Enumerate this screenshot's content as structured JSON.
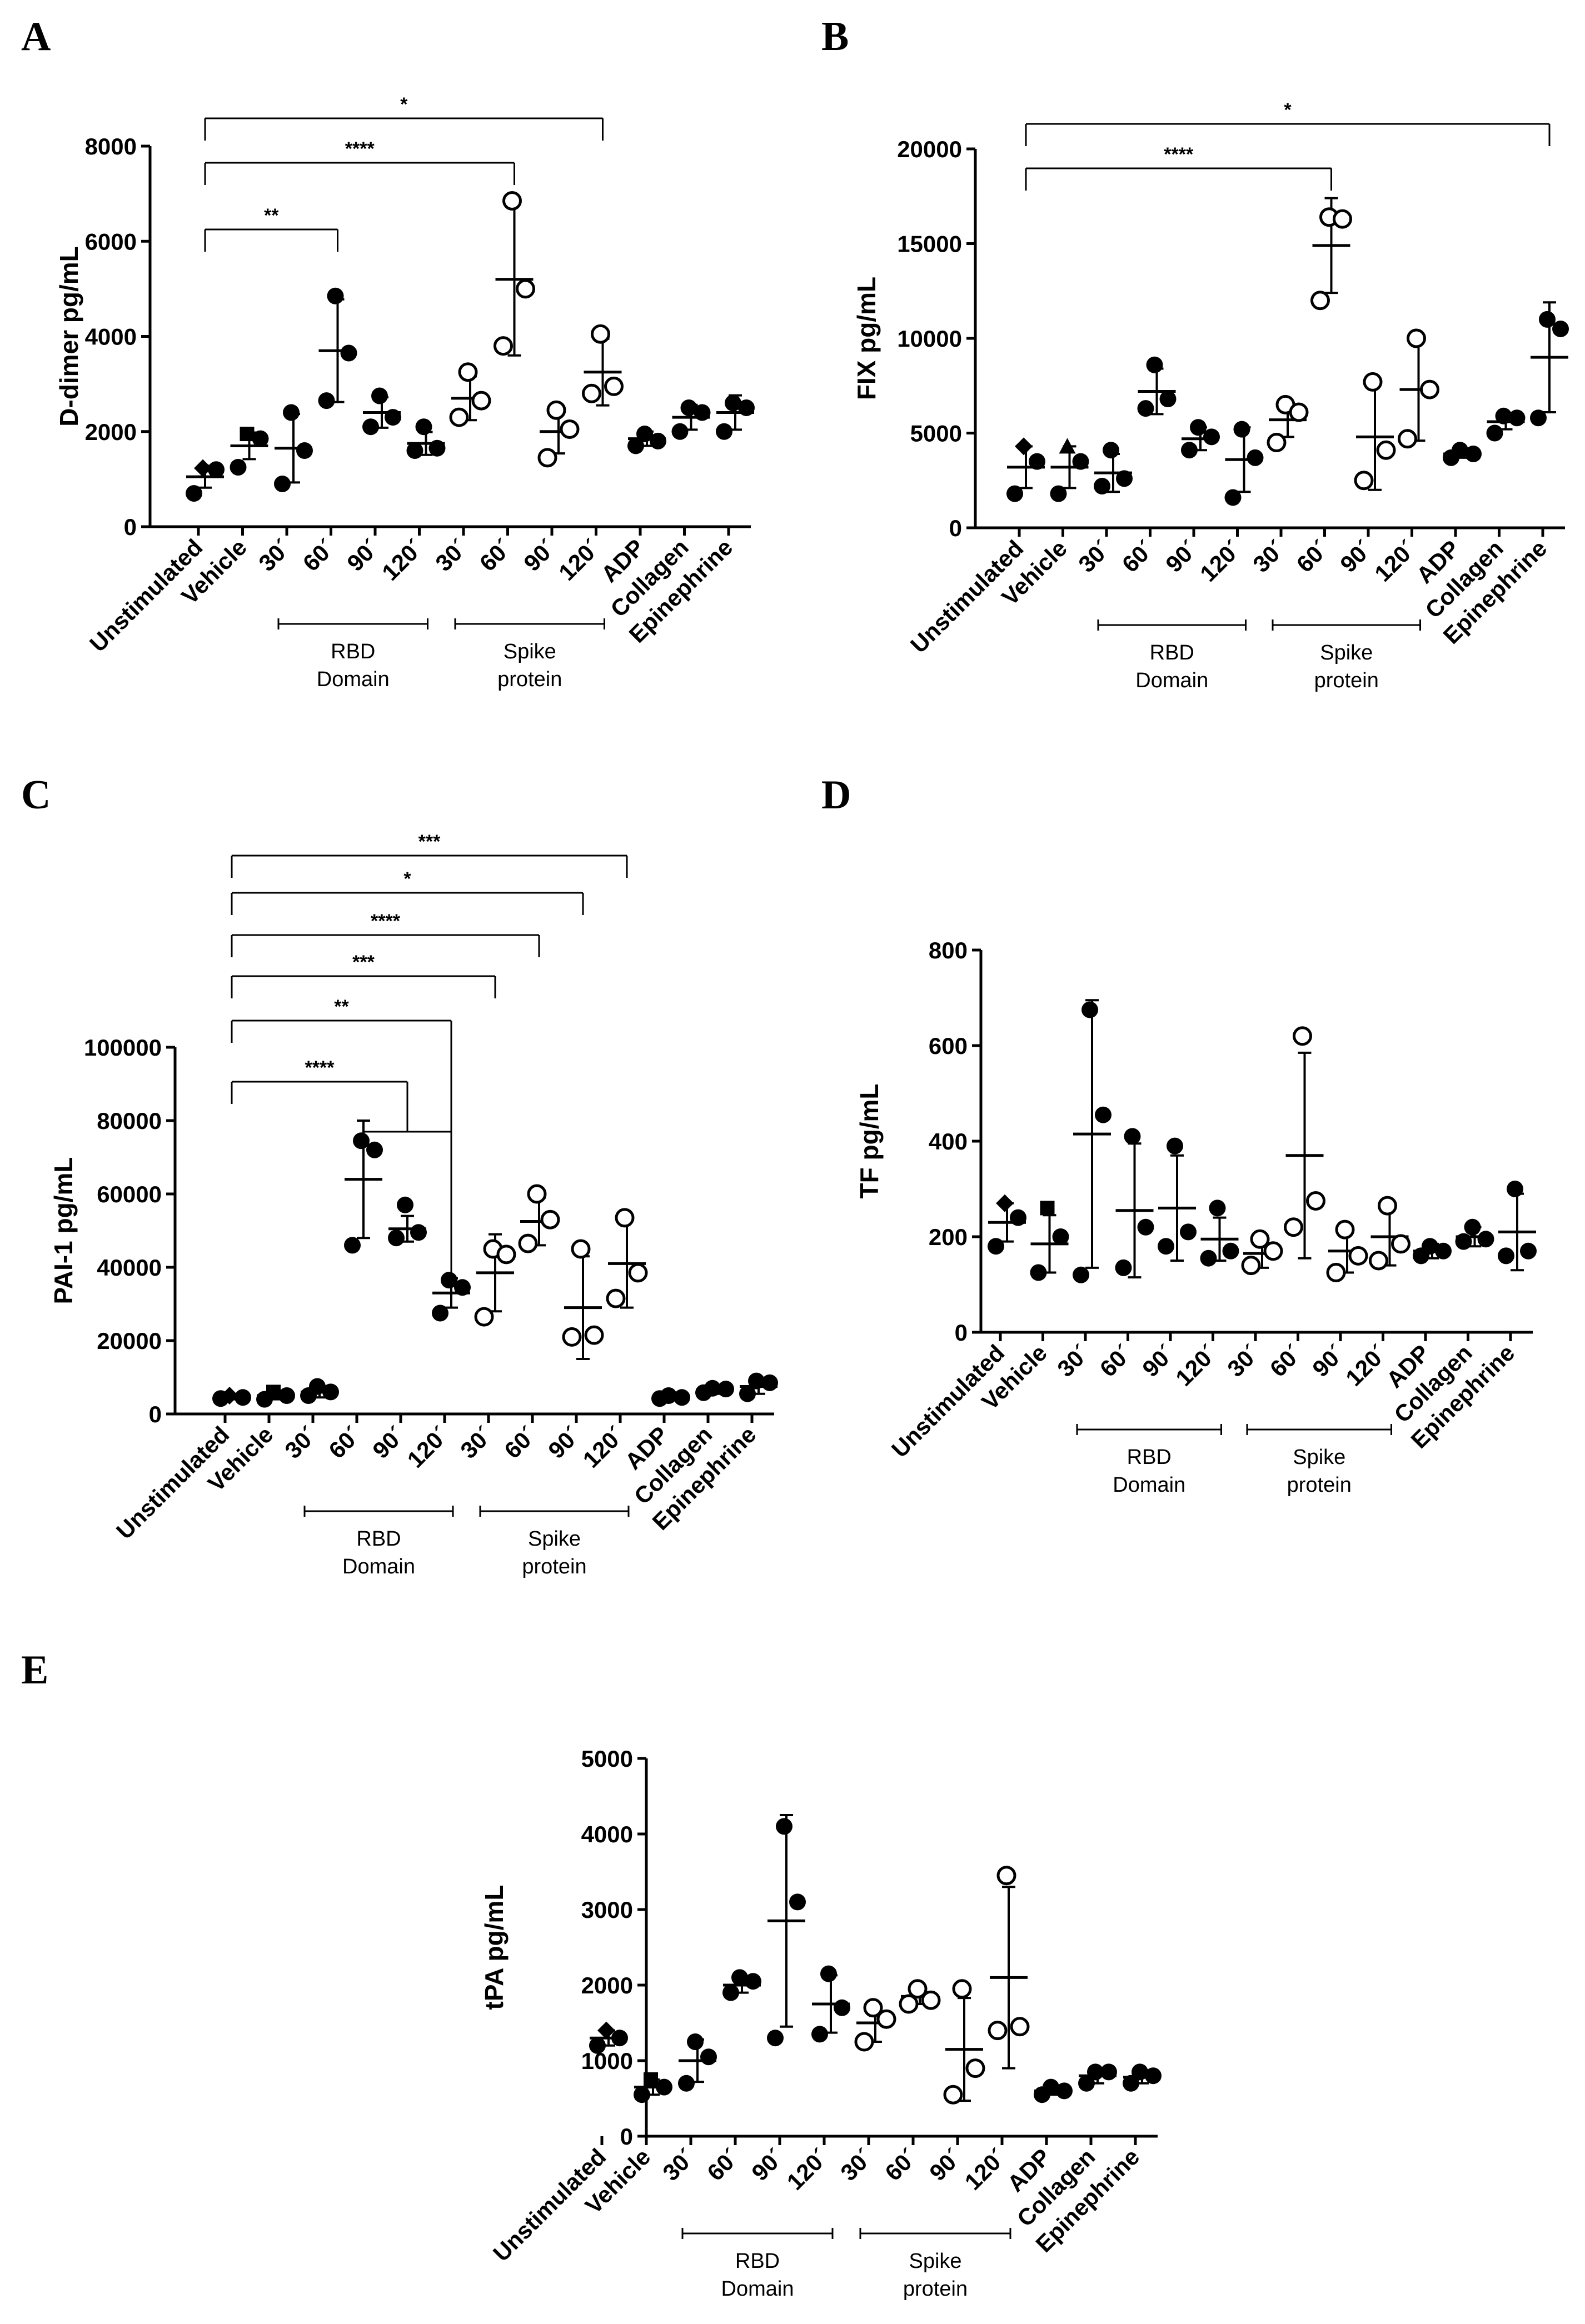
{
  "figure": {
    "categories": [
      "Unstimulated",
      "Vehicle",
      "30´",
      "60´",
      "90´",
      "120´",
      "30´",
      "60´",
      "90´",
      "120´",
      "ADP",
      "Collagen",
      "Epinephrine"
    ],
    "groups": [
      {
        "label_line1": "RBD",
        "label_line2": "Domain"
      },
      {
        "label_line1": "Spike",
        "label_line2": "protein"
      }
    ]
  },
  "chart_data": [
    {
      "panel": "A",
      "type": "scatter",
      "ylabel": "D-dimer pg/mL",
      "ylim": [
        0,
        8000
      ],
      "yticks": [
        0,
        2000,
        4000,
        6000,
        8000
      ],
      "series": [
        {
          "mean": 1050,
          "sd": 230,
          "points": [
            1230,
            700,
            1200
          ],
          "marker": "diamond"
        },
        {
          "mean": 1700,
          "sd": 280,
          "points": [
            1950,
            1250,
            1850
          ],
          "marker": "square"
        },
        {
          "mean": 1650,
          "sd": 720,
          "points": [
            2400,
            900,
            1600
          ],
          "marker": "filled"
        },
        {
          "mean": 3700,
          "sd": 1080,
          "points": [
            4850,
            2650,
            3650
          ],
          "marker": "filled"
        },
        {
          "mean": 2400,
          "sd": 320,
          "points": [
            2750,
            2100,
            2300
          ],
          "marker": "filled"
        },
        {
          "mean": 1750,
          "sd": 240,
          "points": [
            2100,
            1600,
            1650
          ],
          "marker": "filled"
        },
        {
          "mean": 2700,
          "sd": 460,
          "points": [
            3250,
            2300,
            2650
          ],
          "marker": "open"
        },
        {
          "mean": 5200,
          "sd": 1600,
          "points": [
            6850,
            3800,
            5000
          ],
          "marker": "open"
        },
        {
          "mean": 2000,
          "sd": 460,
          "points": [
            2450,
            1450,
            2050
          ],
          "marker": "open"
        },
        {
          "mean": 3250,
          "sd": 700,
          "points": [
            4050,
            2800,
            2950
          ],
          "marker": "open"
        },
        {
          "mean": 1850,
          "sd": 150,
          "points": [
            1950,
            1700,
            1800
          ],
          "marker": "filled"
        },
        {
          "mean": 2300,
          "sd": 260,
          "points": [
            2500,
            2000,
            2400
          ],
          "marker": "filled"
        },
        {
          "mean": 2400,
          "sd": 360,
          "points": [
            2600,
            2000,
            2500
          ],
          "marker": "filled"
        }
      ],
      "significance": [
        {
          "from": 0,
          "to": 3,
          "label": "**"
        },
        {
          "from": 0,
          "to": 7,
          "label": "****"
        },
        {
          "from": 0,
          "to": 9,
          "label": "*"
        }
      ]
    },
    {
      "panel": "B",
      "type": "scatter",
      "ylabel": "FIX pg/mL",
      "ylim": [
        0,
        20000
      ],
      "yticks": [
        0,
        5000,
        10000,
        15000,
        20000
      ],
      "series": [
        {
          "mean": 3200,
          "sd": 1100,
          "points": [
            4300,
            1800,
            3500
          ],
          "marker": "diamond"
        },
        {
          "mean": 3200,
          "sd": 1100,
          "points": [
            4300,
            1800,
            3500
          ],
          "marker": "triangle"
        },
        {
          "mean": 2900,
          "sd": 1000,
          "points": [
            4100,
            2200,
            2600
          ],
          "marker": "filled"
        },
        {
          "mean": 7200,
          "sd": 1200,
          "points": [
            8600,
            6300,
            6800
          ],
          "marker": "filled"
        },
        {
          "mean": 4700,
          "sd": 600,
          "points": [
            5300,
            4100,
            4800
          ],
          "marker": "filled"
        },
        {
          "mean": 3600,
          "sd": 1700,
          "points": [
            5200,
            1600,
            3700
          ],
          "marker": "filled"
        },
        {
          "mean": 5700,
          "sd": 900,
          "points": [
            6500,
            4500,
            6100
          ],
          "marker": "open"
        },
        {
          "mean": 14900,
          "sd": 2500,
          "points": [
            16400,
            12000,
            16300
          ],
          "marker": "open"
        },
        {
          "mean": 4800,
          "sd": 2800,
          "points": [
            7700,
            2500,
            4100
          ],
          "marker": "open"
        },
        {
          "mean": 7300,
          "sd": 2700,
          "points": [
            10000,
            4700,
            7300
          ],
          "marker": "open"
        },
        {
          "mean": 3900,
          "sd": 200,
          "points": [
            4100,
            3700,
            3900
          ],
          "marker": "filled"
        },
        {
          "mean": 5600,
          "sd": 400,
          "points": [
            5900,
            5000,
            5800
          ],
          "marker": "filled"
        },
        {
          "mean": 9000,
          "sd": 2900,
          "points": [
            11000,
            5800,
            10500
          ],
          "marker": "filled"
        }
      ],
      "significance": [
        {
          "from": 0,
          "to": 7,
          "label": "****"
        },
        {
          "from": 0,
          "to": 12,
          "label": "*"
        }
      ]
    },
    {
      "panel": "C",
      "type": "scatter",
      "ylabel": "PAI-1 pg/mL",
      "ylim": [
        0,
        100000
      ],
      "yticks": [
        0,
        20000,
        40000,
        60000,
        80000,
        100000
      ],
      "series": [
        {
          "mean": 4500,
          "sd": 500,
          "points": [
            5000,
            4200,
            4500
          ],
          "marker": "diamond"
        },
        {
          "mean": 5000,
          "sd": 1000,
          "points": [
            6000,
            4000,
            5000
          ],
          "marker": "square"
        },
        {
          "mean": 6000,
          "sd": 1500,
          "points": [
            7500,
            5000,
            6000
          ],
          "marker": "filled"
        },
        {
          "mean": 64000,
          "sd": 16000,
          "points": [
            74500,
            46000,
            72000
          ],
          "marker": "filled"
        },
        {
          "mean": 50500,
          "sd": 3500,
          "points": [
            57000,
            48000,
            49500
          ],
          "marker": "filled"
        },
        {
          "mean": 33000,
          "sd": 4000,
          "points": [
            36500,
            27500,
            34500
          ],
          "marker": "filled"
        },
        {
          "mean": 38500,
          "sd": 10500,
          "points": [
            45000,
            26500,
            43500
          ],
          "marker": "open"
        },
        {
          "mean": 52500,
          "sd": 6500,
          "points": [
            60000,
            46500,
            53000
          ],
          "marker": "open"
        },
        {
          "mean": 29000,
          "sd": 14000,
          "points": [
            45000,
            21000,
            21500
          ],
          "marker": "open"
        },
        {
          "mean": 41000,
          "sd": 12000,
          "points": [
            53500,
            31500,
            38500
          ],
          "marker": "open"
        },
        {
          "mean": 4500,
          "sd": 500,
          "points": [
            5000,
            4200,
            4500
          ],
          "marker": "filled"
        },
        {
          "mean": 6500,
          "sd": 1000,
          "points": [
            7000,
            5800,
            6800
          ],
          "marker": "filled"
        },
        {
          "mean": 7500,
          "sd": 2000,
          "points": [
            9000,
            5500,
            8500
          ],
          "marker": "filled"
        }
      ],
      "significance": [
        {
          "from": 0,
          "to": 4,
          "label": "****",
          "bracket_from": 3,
          "bracket_to": 5
        },
        {
          "from": 0,
          "to": 5,
          "label": "**"
        },
        {
          "from": 0,
          "to": 6,
          "label": "***"
        },
        {
          "from": 0,
          "to": 7,
          "label": "****"
        },
        {
          "from": 0,
          "to": 8,
          "label": "*"
        },
        {
          "from": 0,
          "to": 9,
          "label": "***"
        }
      ]
    },
    {
      "panel": "D",
      "type": "scatter",
      "ylabel": "TF pg/mL",
      "ylim": [
        0,
        800
      ],
      "yticks": [
        0,
        200,
        400,
        600,
        800
      ],
      "series": [
        {
          "mean": 230,
          "sd": 40,
          "points": [
            270,
            180,
            240
          ],
          "marker": "diamond"
        },
        {
          "mean": 185,
          "sd": 60,
          "points": [
            260,
            125,
            200
          ],
          "marker": "square"
        },
        {
          "mean": 415,
          "sd": 280,
          "points": [
            675,
            120,
            455
          ],
          "marker": "filled"
        },
        {
          "mean": 255,
          "sd": 140,
          "points": [
            410,
            135,
            220
          ],
          "marker": "filled"
        },
        {
          "mean": 260,
          "sd": 110,
          "points": [
            390,
            180,
            210
          ],
          "marker": "filled"
        },
        {
          "mean": 195,
          "sd": 45,
          "points": [
            260,
            155,
            170
          ],
          "marker": "filled"
        },
        {
          "mean": 165,
          "sd": 30,
          "points": [
            195,
            140,
            170
          ],
          "marker": "open"
        },
        {
          "mean": 370,
          "sd": 215,
          "points": [
            620,
            220,
            275
          ],
          "marker": "open"
        },
        {
          "mean": 170,
          "sd": 45,
          "points": [
            215,
            125,
            160
          ],
          "marker": "open"
        },
        {
          "mean": 200,
          "sd": 60,
          "points": [
            265,
            150,
            185
          ],
          "marker": "open"
        },
        {
          "mean": 170,
          "sd": 15,
          "points": [
            180,
            160,
            170
          ],
          "marker": "filled"
        },
        {
          "mean": 200,
          "sd": 20,
          "points": [
            220,
            190,
            195
          ],
          "marker": "filled"
        },
        {
          "mean": 210,
          "sd": 80,
          "points": [
            300,
            160,
            170
          ],
          "marker": "filled"
        }
      ],
      "significance": []
    },
    {
      "panel": "E",
      "type": "scatter",
      "ylabel": "tPA pg/mL",
      "ylim": [
        0,
        5000
      ],
      "yticks": [
        0,
        1000,
        2000,
        3000,
        4000,
        5000
      ],
      "series": [
        {
          "mean": 1300,
          "sd": 100,
          "points": [
            1400,
            1200,
            1300
          ],
          "marker": "diamond"
        },
        {
          "mean": 650,
          "sd": 100,
          "points": [
            750,
            550,
            650
          ],
          "marker": "square"
        },
        {
          "mean": 1000,
          "sd": 280,
          "points": [
            1250,
            700,
            1050
          ],
          "marker": "filled"
        },
        {
          "mean": 2000,
          "sd": 100,
          "points": [
            2100,
            1900,
            2050
          ],
          "marker": "filled"
        },
        {
          "mean": 2850,
          "sd": 1400,
          "points": [
            4100,
            1300,
            3100
          ],
          "marker": "filled"
        },
        {
          "mean": 1750,
          "sd": 380,
          "points": [
            2150,
            1350,
            1700
          ],
          "marker": "filled"
        },
        {
          "mean": 1500,
          "sd": 250,
          "points": [
            1700,
            1250,
            1550
          ],
          "marker": "open"
        },
        {
          "mean": 1850,
          "sd": 100,
          "points": [
            1950,
            1750,
            1800
          ],
          "marker": "open"
        },
        {
          "mean": 1150,
          "sd": 680,
          "points": [
            1950,
            550,
            900
          ],
          "marker": "open"
        },
        {
          "mean": 2100,
          "sd": 1200,
          "points": [
            3450,
            1400,
            1450
          ],
          "marker": "open"
        },
        {
          "mean": 600,
          "sd": 50,
          "points": [
            650,
            550,
            600
          ],
          "marker": "filled"
        },
        {
          "mean": 800,
          "sd": 100,
          "points": [
            850,
            700,
            850
          ],
          "marker": "filled"
        },
        {
          "mean": 780,
          "sd": 80,
          "points": [
            850,
            700,
            800
          ],
          "marker": "filled"
        }
      ],
      "significance": []
    }
  ]
}
